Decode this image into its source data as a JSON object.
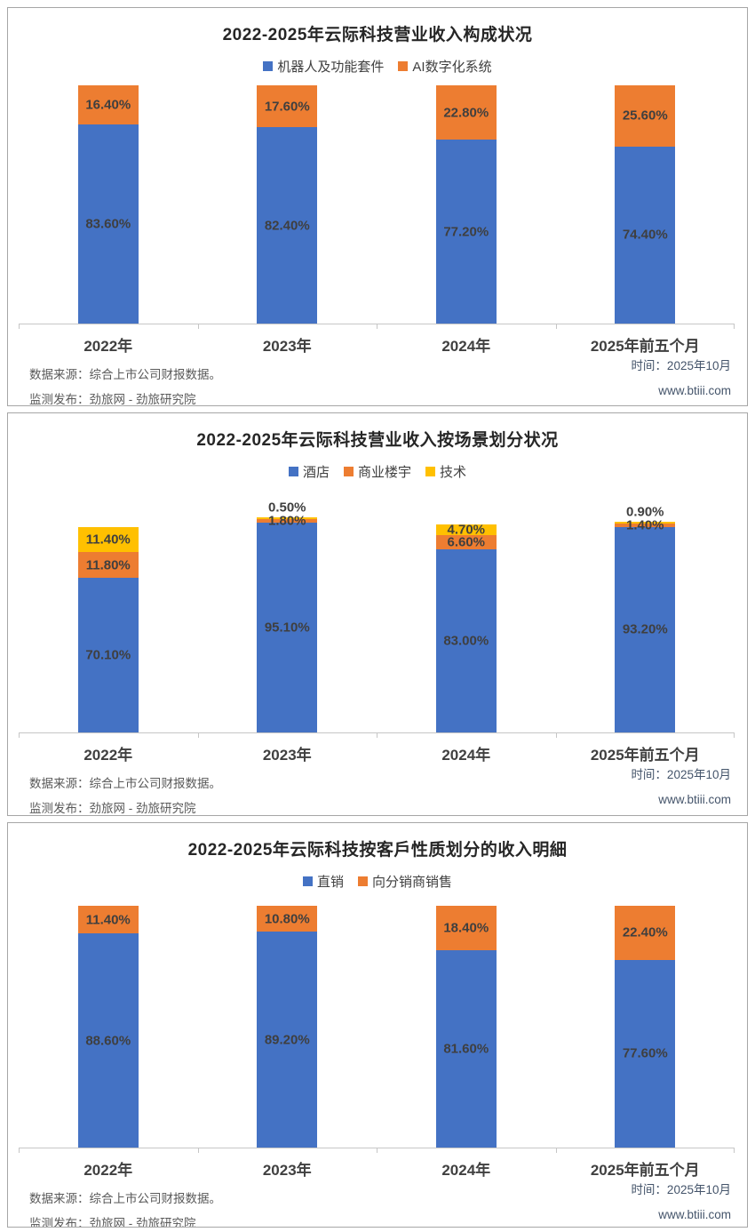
{
  "footer": {
    "source_label": "数据来源：综合上市公司财报数据。",
    "publisher_label": "监测发布：劲旅网 - 劲旅研究院",
    "time_label": "时间：2025年10月",
    "website_label": "www.btiii.com"
  },
  "chart_data": [
    {
      "type": "bar",
      "stacked": true,
      "unit": "percent",
      "title": "2022-2025年云际科技营业收入构成状况",
      "categories": [
        "2022年",
        "2023年",
        "2024年",
        "2025年前五个月"
      ],
      "series": [
        {
          "name": "机器人及功能套件",
          "color": "#4472C4",
          "values": [
            83.6,
            82.4,
            77.2,
            74.4
          ]
        },
        {
          "name": "AI数字化系统",
          "color": "#ED7D31",
          "values": [
            16.4,
            17.6,
            22.8,
            25.6
          ]
        }
      ],
      "ylim": [
        0,
        100
      ],
      "grid": false,
      "legend_position": "top",
      "data_labels": true,
      "label_format": "0.00%"
    },
    {
      "type": "bar",
      "stacked": true,
      "unit": "percent",
      "title": "2022-2025年云际科技营业收入按场景划分状况",
      "categories": [
        "2022年",
        "2023年",
        "2024年",
        "2025年前五个月"
      ],
      "series": [
        {
          "name": "酒店",
          "color": "#4472C4",
          "values": [
            70.1,
            95.1,
            83.0,
            93.2
          ]
        },
        {
          "name": "商业楼宇",
          "color": "#ED7D31",
          "values": [
            11.8,
            1.8,
            6.6,
            1.4
          ]
        },
        {
          "name": "技术",
          "color": "#FFC000",
          "values": [
            11.4,
            0.5,
            4.7,
            0.9
          ]
        }
      ],
      "ylim": [
        0,
        100
      ],
      "grid": false,
      "legend_position": "top",
      "data_labels": true,
      "label_format": "0.00%"
    },
    {
      "type": "bar",
      "stacked": true,
      "unit": "percent",
      "title": "2022-2025年云际科技按客戶性质划分的收入明細",
      "categories": [
        "2022年",
        "2023年",
        "2024年",
        "2025年前五个月"
      ],
      "series": [
        {
          "name": "直销",
          "color": "#4472C4",
          "values": [
            88.6,
            89.2,
            81.6,
            77.6
          ]
        },
        {
          "name": "向分销商销售",
          "color": "#ED7D31",
          "values": [
            11.4,
            10.8,
            18.4,
            22.4
          ]
        }
      ],
      "ylim": [
        0,
        100
      ],
      "grid": false,
      "legend_position": "top",
      "data_labels": true,
      "label_format": "0.00%"
    }
  ]
}
